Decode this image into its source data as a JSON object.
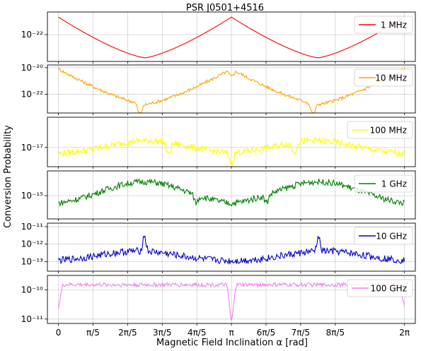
{
  "chart_data": {
    "title": "PSR J0501+4516",
    "xlabel": "Magnetic Field Inclination α [rad]",
    "ylabel": "Conversion Probability",
    "type": "line",
    "grid": true,
    "xlim": [
      -0.2,
      6.48
    ],
    "x_ticks": [
      {
        "value": 0,
        "label": "0"
      },
      {
        "value": 0.6283,
        "label": "π/5"
      },
      {
        "value": 1.2566,
        "label": "2π/5"
      },
      {
        "value": 1.885,
        "label": "3π/5"
      },
      {
        "value": 2.5133,
        "label": "4π/5"
      },
      {
        "value": 3.1416,
        "label": "π"
      },
      {
        "value": 3.7699,
        "label": "6π/5"
      },
      {
        "value": 4.3982,
        "label": "7π/5"
      },
      {
        "value": 5.0265,
        "label": "8π/5"
      },
      {
        "value": 6.2832,
        "label": "2π"
      }
    ],
    "panels": [
      {
        "legend": "1 MHz",
        "color": "#ff0000",
        "legend_position": "upper-right",
        "ylim_log10": [
          -22.95,
          -21.2
        ],
        "yticks": [
          {
            "exp": -22,
            "label": "10⁻²²"
          }
        ],
        "profile": {
          "model": "vshape",
          "max": -21.38,
          "min": -22.82,
          "period": 3.1416,
          "noise": 0
        },
        "x": [
          0,
          0.3142,
          0.6283,
          0.9425,
          1.2566,
          1.5708,
          1.885,
          2.1991,
          2.5133,
          2.8274,
          3.1416,
          3.4558,
          3.7699,
          4.0841,
          4.3982,
          4.7124,
          5.0265,
          5.3407,
          5.6549,
          5.969,
          6.2832
        ],
        "y_log10": [
          -21.38,
          -21.75,
          -22.1,
          -22.42,
          -22.65,
          -22.82,
          -22.65,
          -22.42,
          -22.1,
          -21.75,
          -21.38,
          -21.75,
          -22.1,
          -22.42,
          -22.65,
          -22.82,
          -22.65,
          -22.42,
          -22.1,
          -21.75,
          -21.38
        ]
      },
      {
        "legend": "10 MHz",
        "color": "#ffa500",
        "legend_position": "upper-right",
        "ylim_log10": [
          -23.4,
          -19.8
        ],
        "yticks": [
          {
            "exp": -20,
            "label": "10⁻²⁰"
          },
          {
            "exp": -22,
            "label": "10⁻²²"
          }
        ],
        "profile": {
          "model": "vshape",
          "max": -20.1,
          "min": -22.75,
          "period": 3.1416,
          "noise": 0.12,
          "dips": [
            {
              "x": 1.48,
              "depth": 0.9
            },
            {
              "x": 3.1416,
              "depth": 0.55
            },
            {
              "x": 4.62,
              "depth": 0.9
            }
          ]
        },
        "x": [
          0,
          0.6283,
          1.2566,
          1.885,
          2.5133,
          3.1416,
          3.7699,
          4.3982,
          5.0265,
          5.6549,
          6.2832
        ],
        "y_log10": [
          -20.1,
          -21.0,
          -22.4,
          -22.2,
          -20.9,
          -20.3,
          -21.0,
          -22.4,
          -22.2,
          -20.9,
          -20.1
        ]
      },
      {
        "legend": "100 MHz",
        "color": "#ffff00",
        "legend_position": "upper-right",
        "ylim_log10": [
          -17.7,
          -15.9
        ],
        "yticks": [
          {
            "exp": -17,
            "label": "10⁻¹⁷"
          }
        ],
        "profile": {
          "model": "hump",
          "base": -17.25,
          "peak": -16.75,
          "center_a": 1.62,
          "center_b": 4.66,
          "width": 1.0,
          "noise": 0.12,
          "dips": [
            {
              "x": 2.0,
              "depth": 0.45
            },
            {
              "x": 3.1416,
              "depth": 0.35
            },
            {
              "x": 4.28,
              "depth": 0.4
            }
          ]
        },
        "x": [
          0,
          0.6283,
          1.2566,
          1.885,
          2.5133,
          3.1416,
          3.7699,
          4.3982,
          5.0265,
          5.6549,
          6.2832
        ],
        "y_log10": [
          -17.3,
          -17.0,
          -16.8,
          -17.05,
          -17.0,
          -17.25,
          -17.0,
          -16.8,
          -17.05,
          -17.0,
          -17.3
        ]
      },
      {
        "legend": "1 GHz",
        "color": "#008000",
        "legend_position": "upper-right",
        "ylim_log10": [
          -15.75,
          -14.2
        ],
        "yticks": [
          {
            "exp": -15,
            "label": "10⁻¹⁵"
          }
        ],
        "profile": {
          "model": "hump",
          "base": -15.35,
          "peak": -14.55,
          "center_a": 1.55,
          "center_b": 4.73,
          "width": 1.1,
          "noise": 0.1,
          "dips": [
            {
              "x": 2.5,
              "depth": 0.25
            },
            {
              "x": 3.78,
              "depth": 0.25
            }
          ]
        },
        "x": [
          0,
          0.6283,
          1.2566,
          1.885,
          2.5133,
          3.1416,
          3.7699,
          4.3982,
          5.0265,
          5.6549,
          6.2832
        ],
        "y_log10": [
          -15.35,
          -15.1,
          -14.7,
          -14.9,
          -15.2,
          -15.3,
          -15.2,
          -14.7,
          -14.9,
          -15.1,
          -15.35
        ]
      },
      {
        "legend": "10 GHz",
        "color": "#0000cd",
        "legend_position": "upper-right",
        "ylim_log10": [
          -13.55,
          -10.8
        ],
        "yticks": [
          {
            "exp": -11,
            "label": "10⁻¹¹"
          },
          {
            "exp": -12,
            "label": "10⁻¹²"
          },
          {
            "exp": -13,
            "label": "10⁻¹³"
          }
        ],
        "profile": {
          "model": "hump",
          "base": -13.0,
          "peak": -12.4,
          "center_a": 1.45,
          "center_b": 4.83,
          "width": 1.0,
          "noise": 0.2,
          "spikes": [
            {
              "x": 1.56,
              "height": 0.9
            },
            {
              "x": 4.72,
              "height": 0.8
            }
          ]
        },
        "x": [
          0,
          0.6283,
          1.2566,
          1.885,
          2.5133,
          3.1416,
          3.7699,
          4.3982,
          5.0265,
          5.6549,
          6.2832
        ],
        "y_log10": [
          -12.95,
          -12.8,
          -12.3,
          -12.6,
          -12.85,
          -13.0,
          -12.85,
          -12.3,
          -12.6,
          -12.8,
          -12.95
        ]
      },
      {
        "legend": "100 GHz",
        "color": "#ee82ee",
        "legend_position": "upper-right",
        "ylim_log10": [
          -11.15,
          -9.5
        ],
        "yticks": [
          {
            "exp": -10,
            "label": "10⁻¹⁰"
          },
          {
            "exp": -11,
            "label": "10⁻¹¹"
          }
        ],
        "profile": {
          "model": "plateau",
          "base": -9.82,
          "noise": 0.07,
          "edge_low": -10.6,
          "dips": [
            {
              "x": 3.1416,
              "depth": 1.25
            }
          ]
        },
        "x": [
          0,
          0.3142,
          0.6283,
          1.2566,
          1.885,
          2.5133,
          3.1416,
          3.7699,
          4.3982,
          5.0265,
          5.6549,
          5.969,
          6.2832
        ],
        "y_log10": [
          -10.6,
          -9.85,
          -9.85,
          -9.8,
          -9.85,
          -9.8,
          -11.05,
          -9.8,
          -9.85,
          -9.8,
          -9.85,
          -9.85,
          -10.6
        ]
      }
    ]
  }
}
